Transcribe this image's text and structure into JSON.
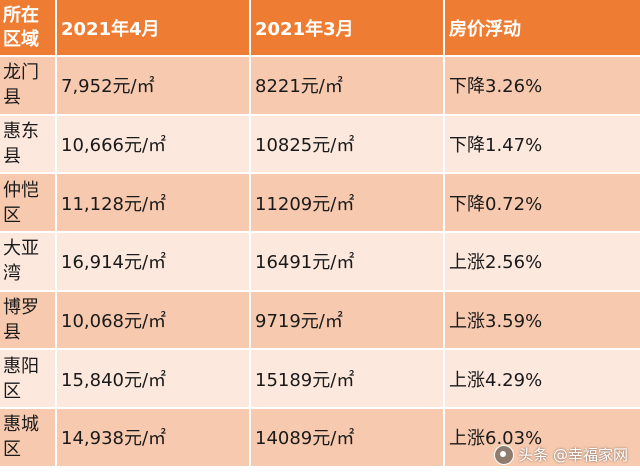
{
  "header": {
    "region": "所在区域",
    "april": "2021年4月",
    "march": "2021年3月",
    "change": "房价浮动"
  },
  "rows": [
    {
      "region": "龙门县",
      "april": "7,952元/㎡",
      "march": "8221元/㎡",
      "change": "下降3.26%"
    },
    {
      "region": "惠东县",
      "april": "10,666元/㎡",
      "march": "10825元/㎡",
      "change": "下降1.47%"
    },
    {
      "region": "仲恺区",
      "april": "11,128元/㎡",
      "march": "11209元/㎡",
      "change": "下降0.72%"
    },
    {
      "region": "大亚湾",
      "april": "16,914元/㎡",
      "march": "16491元/㎡",
      "change": "上涨2.56%"
    },
    {
      "region": "博罗县",
      "april": "10,068元/㎡",
      "march": "9719元/㎡",
      "change": "上涨3.59%"
    },
    {
      "region": "惠阳区",
      "april": "15,840元/㎡",
      "march": "15189元/㎡",
      "change": "上涨4.29%"
    },
    {
      "region": "惠城区",
      "april": "14,938元/㎡",
      "march": "14089元/㎡",
      "change": "上涨6.03%"
    }
  ],
  "watermark": {
    "text": "头条 @幸福家网",
    "icon": "toutiao-logo-icon"
  },
  "colors": {
    "header_bg": "#ee7d33",
    "row_odd_bg": "#f7c9ae",
    "row_even_bg": "#fce8dd"
  }
}
